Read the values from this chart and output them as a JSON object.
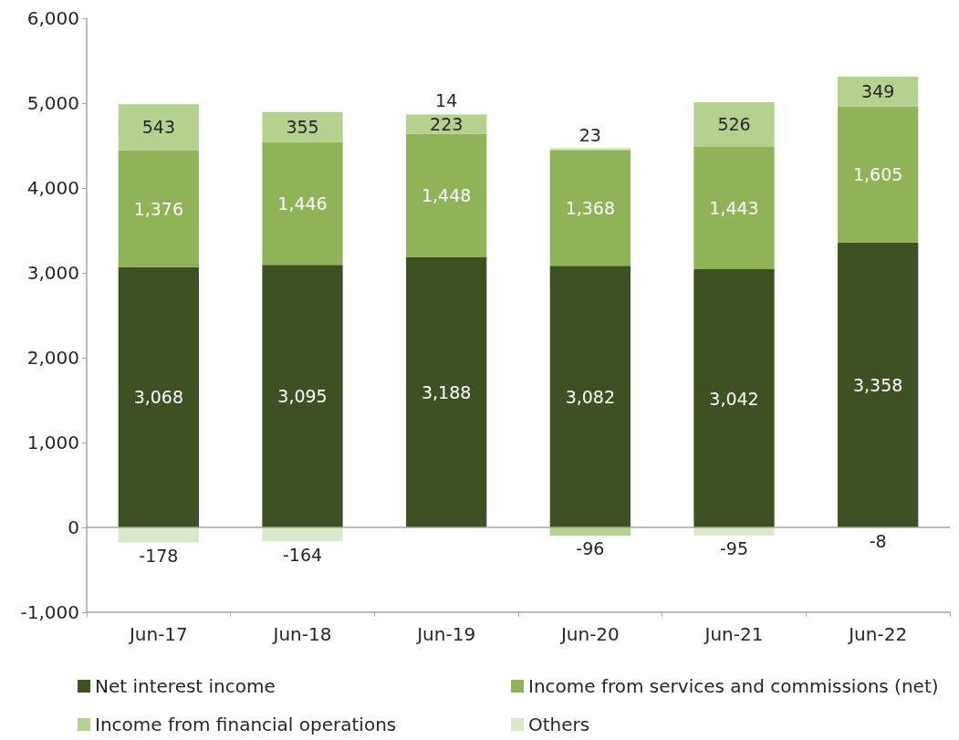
{
  "chart_data": {
    "type": "bar",
    "stacked": true,
    "categories": [
      "Jun-17",
      "Jun-18",
      "Jun-19",
      "Jun-20",
      "Jun-21",
      "Jun-22"
    ],
    "series": [
      {
        "name": "Net interest income",
        "color": "#3d5122",
        "values": [
          3068,
          3095,
          3188,
          3082,
          3042,
          3358
        ],
        "value_labels": [
          "3,068",
          "3,095",
          "3,188",
          "3,082",
          "3,042",
          "3,358"
        ]
      },
      {
        "name": "Income from services and commissions (net)",
        "color": "#8fb457",
        "values": [
          1376,
          1446,
          1448,
          1368,
          1443,
          1605
        ],
        "value_labels": [
          "1,376",
          "1,446",
          "1,448",
          "1,368",
          "1,443",
          "1,605"
        ]
      },
      {
        "name": "Income from financial operations",
        "color": "#b5d190",
        "values": [
          543,
          355,
          223,
          -96,
          526,
          349
        ],
        "value_labels": [
          "543",
          "355",
          "223",
          "-96",
          "526",
          "349"
        ]
      },
      {
        "name": "Others",
        "color": "#d9e8c6",
        "values": [
          -178,
          -164,
          14,
          23,
          -95,
          -8
        ],
        "value_labels": [
          "-178",
          "-164",
          "14",
          "23",
          "-95",
          "-8"
        ]
      }
    ],
    "ylim": [
      -1000,
      6000
    ],
    "yticks": [
      {
        "value": -1000,
        "label": "-1,000"
      },
      {
        "value": 0,
        "label": "0"
      },
      {
        "value": 1000,
        "label": "1,000"
      },
      {
        "value": 2000,
        "label": "2,000"
      },
      {
        "value": 3000,
        "label": "3,000"
      },
      {
        "value": 4000,
        "label": "4,000"
      },
      {
        "value": 5000,
        "label": "5,000"
      },
      {
        "value": 6000,
        "label": "6,000"
      }
    ],
    "ref_lines": [
      {
        "axis": "y",
        "value": 0,
        "color": "#a6a6a6"
      }
    ],
    "grid": false,
    "legend": "bottom"
  }
}
